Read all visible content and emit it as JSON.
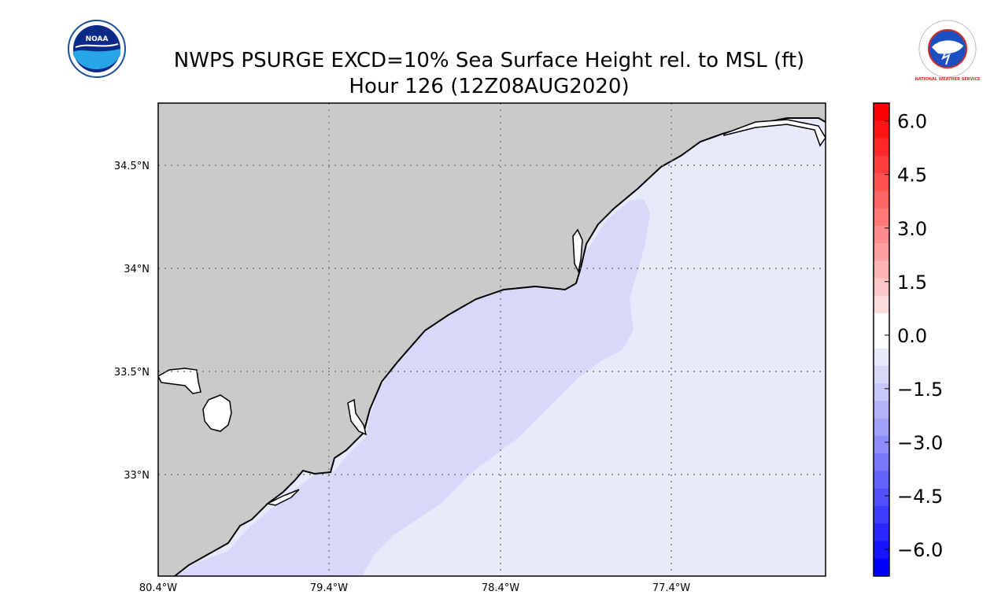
{
  "header": {
    "title_line_1": "NWPS PSURGE EXCD=10% Sea Surface Height rel. to MSL (ft)",
    "title_line_2": "Hour 126 (12Z08AUG2020)"
  },
  "logos": {
    "left": {
      "name": "noaa-logo",
      "text": "NOAA"
    },
    "right": {
      "name": "nws-logo",
      "text": "NATIONAL WEATHER SERVICE"
    }
  },
  "map": {
    "land_color": "#cacaca",
    "ocean_shallow_color": "#e9e9fc",
    "ocean_deep_color": "#d8d8fb",
    "lat_labels": [
      {
        "value": 34.5,
        "label": "34.5°N"
      },
      {
        "value": 34.0,
        "label": "34°N"
      },
      {
        "value": 33.5,
        "label": "33.5°N"
      },
      {
        "value": 33.0,
        "label": "33°N"
      }
    ],
    "lon_labels": [
      {
        "value": -80.4,
        "label": "80.4°W"
      },
      {
        "value": -79.4,
        "label": "79.4°W"
      },
      {
        "value": -78.4,
        "label": "78.4°W"
      },
      {
        "value": -77.4,
        "label": "77.4°W"
      }
    ]
  },
  "colorbar": {
    "min": -6.75,
    "max": 6.5,
    "tick_labels": [
      {
        "value": 6.0,
        "label": "6.0"
      },
      {
        "value": 4.5,
        "label": "4.5"
      },
      {
        "value": 3.0,
        "label": "3.0"
      },
      {
        "value": 1.5,
        "label": "1.5"
      },
      {
        "value": 0.0,
        "label": "0.0"
      },
      {
        "value": -1.5,
        "label": "−1.5"
      },
      {
        "value": -3.0,
        "label": "−3.0"
      },
      {
        "value": -4.5,
        "label": "−4.5"
      },
      {
        "value": -6.0,
        "label": "−6.0"
      }
    ],
    "bands_top_to_bottom": [
      "#ff0000",
      "#ff1414",
      "#ff2828",
      "#ff3c3c",
      "#ff5050",
      "#ff6464",
      "#ff7878",
      "#ff8c8c",
      "#ffa0a0",
      "#ffb4b4",
      "#ffc8c8",
      "#ffdcdc",
      "#ffffff",
      "#ffffff",
      "#e9e9fc",
      "#d8d8fb",
      "#c8c8fa",
      "#b4b4fb",
      "#a0a0fb",
      "#8c8cfb",
      "#7878fc",
      "#6464fc",
      "#5050fd",
      "#3c3cfd",
      "#2828fe",
      "#1414fe",
      "#0000ff"
    ]
  }
}
